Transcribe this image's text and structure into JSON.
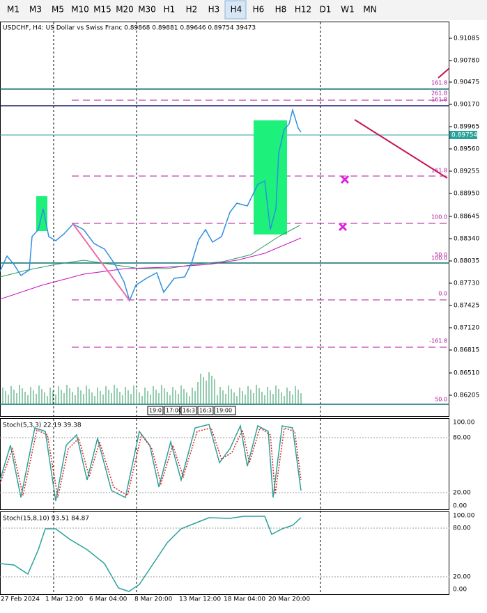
{
  "toolbar": {
    "timeframes": [
      "M1",
      "M3",
      "M5",
      "M10",
      "M15",
      "M20",
      "M30",
      "H1",
      "H2",
      "H3",
      "H4",
      "H6",
      "H8",
      "H12",
      "D1",
      "W1",
      "MN"
    ],
    "active": "H4"
  },
  "main_pane": {
    "header": "USDCHF, H4:  US Dollar vs Swiss Franc  0.89868 0.89881 0.89646 0.89754  39473",
    "price_labels": [
      "0.91085",
      "0.90780",
      "0.90475",
      "0.90170",
      "0.89965",
      "0.89560",
      "0.89255",
      "0.88950",
      "0.88645",
      "0.88340",
      "0.88035",
      "0.87730",
      "0.87425",
      "0.87120",
      "0.86815",
      "0.86510",
      "0.86205"
    ],
    "current_price": "0.89754",
    "fib_labels": [
      "161.8",
      "261.8",
      "161.8",
      "161.8",
      "100.0",
      "50.0",
      "100.0",
      "0.0",
      "-161.8",
      "50.0"
    ],
    "time_labels": [
      "19:0",
      "17:00",
      "16:3",
      "16:3",
      "19:00"
    ]
  },
  "stoch_fast": {
    "header": "Stoch(5,3,3) 22.19 39.38",
    "levels": [
      "100.00",
      "80.00",
      "20.00",
      "0.00"
    ]
  },
  "stoch_slow": {
    "header": "Stoch(15,8,10) 93.51 84.87",
    "levels": [
      "100.00",
      "80.00",
      "20.00",
      "0.00"
    ]
  },
  "date_axis": [
    "27 Feb 2024",
    "1 Mar 12:00",
    "6 Mar 04:00",
    "8 Mar 20:00",
    "13 Mar 12:00",
    "18 Mar 04:00",
    "20 Mar 20:00"
  ]
}
